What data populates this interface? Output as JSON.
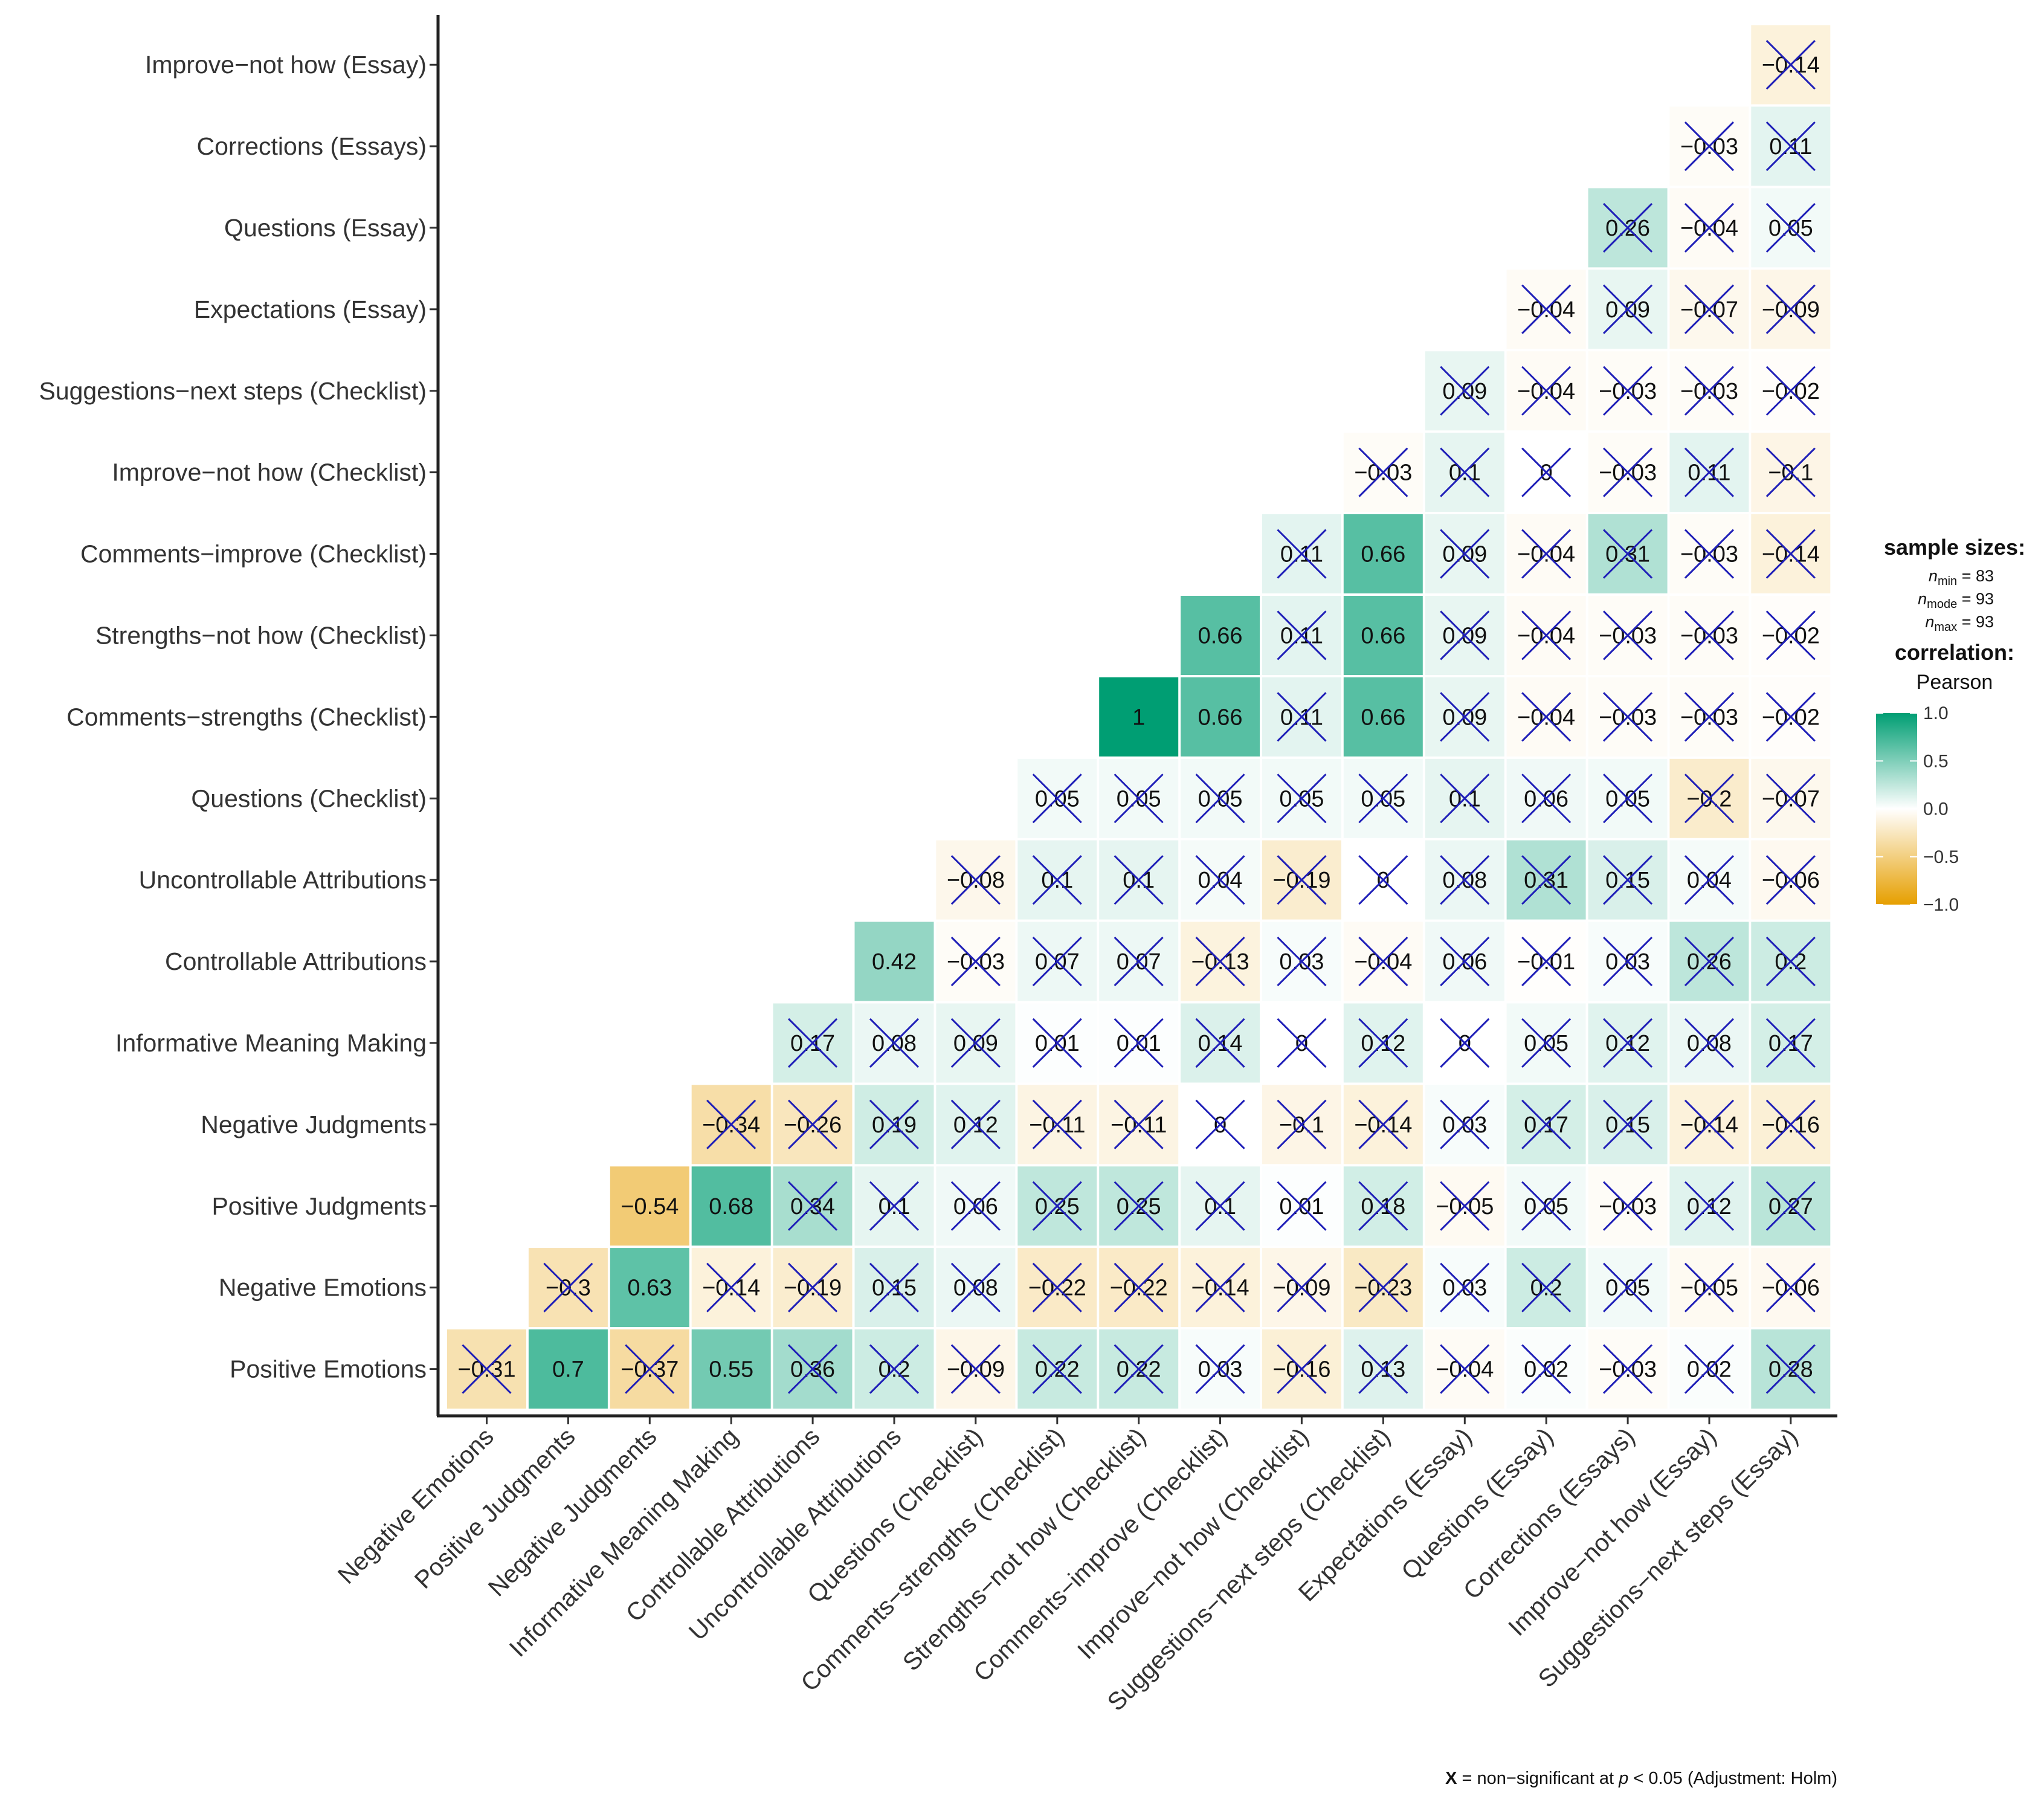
{
  "chart_data": {
    "type": "heatmap",
    "title": "",
    "variables": [
      "Positive Emotions",
      "Negative Emotions",
      "Positive Judgments",
      "Negative Judgments",
      "Informative Meaning Making",
      "Controllable Attributions",
      "Uncontrollable Attributions",
      "Questions (Checklist)",
      "Comments−strengths (Checklist)",
      "Strengths−not how (Checklist)",
      "Comments−improve (Checklist)",
      "Improve−not how (Checklist)",
      "Suggestions−next steps (Checklist)",
      "Expectations (Essay)",
      "Questions (Essay)",
      "Corrections (Essays)",
      "Improve−not how (Essay)",
      "Suggestions−next steps (Essay)"
    ],
    "cells": [
      {
        "r": 0,
        "c": 0,
        "v": -0.31,
        "t": "−0.31",
        "ns": true
      },
      {
        "r": 0,
        "c": 1,
        "v": 0.7,
        "t": "0.7",
        "ns": false
      },
      {
        "r": 0,
        "c": 2,
        "v": -0.37,
        "t": "−0.37",
        "ns": true
      },
      {
        "r": 0,
        "c": 3,
        "v": 0.55,
        "t": "0.55",
        "ns": false
      },
      {
        "r": 0,
        "c": 4,
        "v": 0.36,
        "t": "0.36",
        "ns": true
      },
      {
        "r": 0,
        "c": 5,
        "v": 0.2,
        "t": "0.2",
        "ns": true
      },
      {
        "r": 0,
        "c": 6,
        "v": -0.09,
        "t": "−0.09",
        "ns": true
      },
      {
        "r": 0,
        "c": 7,
        "v": 0.22,
        "t": "0.22",
        "ns": true
      },
      {
        "r": 0,
        "c": 8,
        "v": 0.22,
        "t": "0.22",
        "ns": true
      },
      {
        "r": 0,
        "c": 9,
        "v": 0.03,
        "t": "0.03",
        "ns": true
      },
      {
        "r": 0,
        "c": 10,
        "v": -0.16,
        "t": "−0.16",
        "ns": true
      },
      {
        "r": 0,
        "c": 11,
        "v": 0.13,
        "t": "0.13",
        "ns": true
      },
      {
        "r": 0,
        "c": 12,
        "v": -0.04,
        "t": "−0.04",
        "ns": true
      },
      {
        "r": 0,
        "c": 13,
        "v": 0.02,
        "t": "0.02",
        "ns": true
      },
      {
        "r": 0,
        "c": 14,
        "v": -0.03,
        "t": "−0.03",
        "ns": true
      },
      {
        "r": 0,
        "c": 15,
        "v": 0.02,
        "t": "0.02",
        "ns": true
      },
      {
        "r": 0,
        "c": 16,
        "v": 0.28,
        "t": "0.28",
        "ns": true
      },
      {
        "r": 1,
        "c": 1,
        "v": -0.3,
        "t": "−0.3",
        "ns": true
      },
      {
        "r": 1,
        "c": 2,
        "v": 0.63,
        "t": "0.63",
        "ns": false
      },
      {
        "r": 1,
        "c": 3,
        "v": -0.14,
        "t": "−0.14",
        "ns": true
      },
      {
        "r": 1,
        "c": 4,
        "v": -0.19,
        "t": "−0.19",
        "ns": true
      },
      {
        "r": 1,
        "c": 5,
        "v": 0.15,
        "t": "0.15",
        "ns": true
      },
      {
        "r": 1,
        "c": 6,
        "v": 0.08,
        "t": "0.08",
        "ns": true
      },
      {
        "r": 1,
        "c": 7,
        "v": -0.22,
        "t": "−0.22",
        "ns": true
      },
      {
        "r": 1,
        "c": 8,
        "v": -0.22,
        "t": "−0.22",
        "ns": true
      },
      {
        "r": 1,
        "c": 9,
        "v": -0.14,
        "t": "−0.14",
        "ns": true
      },
      {
        "r": 1,
        "c": 10,
        "v": -0.09,
        "t": "−0.09",
        "ns": true
      },
      {
        "r": 1,
        "c": 11,
        "v": -0.23,
        "t": "−0.23",
        "ns": true
      },
      {
        "r": 1,
        "c": 12,
        "v": 0.03,
        "t": "0.03",
        "ns": true
      },
      {
        "r": 1,
        "c": 13,
        "v": 0.2,
        "t": "0.2",
        "ns": true
      },
      {
        "r": 1,
        "c": 14,
        "v": 0.05,
        "t": "0.05",
        "ns": true
      },
      {
        "r": 1,
        "c": 15,
        "v": -0.05,
        "t": "−0.05",
        "ns": true
      },
      {
        "r": 1,
        "c": 16,
        "v": -0.06,
        "t": "−0.06",
        "ns": true
      },
      {
        "r": 2,
        "c": 2,
        "v": -0.54,
        "t": "−0.54",
        "ns": false
      },
      {
        "r": 2,
        "c": 3,
        "v": 0.68,
        "t": "0.68",
        "ns": false
      },
      {
        "r": 2,
        "c": 4,
        "v": 0.34,
        "t": "0.34",
        "ns": true
      },
      {
        "r": 2,
        "c": 5,
        "v": 0.1,
        "t": "0.1",
        "ns": true
      },
      {
        "r": 2,
        "c": 6,
        "v": 0.06,
        "t": "0.06",
        "ns": true
      },
      {
        "r": 2,
        "c": 7,
        "v": 0.25,
        "t": "0.25",
        "ns": true
      },
      {
        "r": 2,
        "c": 8,
        "v": 0.25,
        "t": "0.25",
        "ns": true
      },
      {
        "r": 2,
        "c": 9,
        "v": 0.1,
        "t": "0.1",
        "ns": true
      },
      {
        "r": 2,
        "c": 10,
        "v": 0.01,
        "t": "0.01",
        "ns": true
      },
      {
        "r": 2,
        "c": 11,
        "v": 0.18,
        "t": "0.18",
        "ns": true
      },
      {
        "r": 2,
        "c": 12,
        "v": -0.05,
        "t": "−0.05",
        "ns": true
      },
      {
        "r": 2,
        "c": 13,
        "v": 0.05,
        "t": "0.05",
        "ns": true
      },
      {
        "r": 2,
        "c": 14,
        "v": -0.03,
        "t": "−0.03",
        "ns": true
      },
      {
        "r": 2,
        "c": 15,
        "v": 0.12,
        "t": "0.12",
        "ns": true
      },
      {
        "r": 2,
        "c": 16,
        "v": 0.27,
        "t": "0.27",
        "ns": true
      },
      {
        "r": 3,
        "c": 3,
        "v": -0.34,
        "t": "−0.34",
        "ns": true
      },
      {
        "r": 3,
        "c": 4,
        "v": -0.26,
        "t": "−0.26",
        "ns": true
      },
      {
        "r": 3,
        "c": 5,
        "v": 0.19,
        "t": "0.19",
        "ns": true
      },
      {
        "r": 3,
        "c": 6,
        "v": 0.12,
        "t": "0.12",
        "ns": true
      },
      {
        "r": 3,
        "c": 7,
        "v": -0.11,
        "t": "−0.11",
        "ns": true
      },
      {
        "r": 3,
        "c": 8,
        "v": -0.11,
        "t": "−0.11",
        "ns": true
      },
      {
        "r": 3,
        "c": 9,
        "v": 0,
        "t": "0",
        "ns": true
      },
      {
        "r": 3,
        "c": 10,
        "v": -0.1,
        "t": "−0.1",
        "ns": true
      },
      {
        "r": 3,
        "c": 11,
        "v": -0.14,
        "t": "−0.14",
        "ns": true
      },
      {
        "r": 3,
        "c": 12,
        "v": 0.03,
        "t": "0.03",
        "ns": true
      },
      {
        "r": 3,
        "c": 13,
        "v": 0.17,
        "t": "0.17",
        "ns": true
      },
      {
        "r": 3,
        "c": 14,
        "v": 0.15,
        "t": "0.15",
        "ns": true
      },
      {
        "r": 3,
        "c": 15,
        "v": -0.14,
        "t": "−0.14",
        "ns": true
      },
      {
        "r": 3,
        "c": 16,
        "v": -0.16,
        "t": "−0.16",
        "ns": true
      },
      {
        "r": 4,
        "c": 4,
        "v": 0.17,
        "t": "0.17",
        "ns": true
      },
      {
        "r": 4,
        "c": 5,
        "v": 0.08,
        "t": "0.08",
        "ns": true
      },
      {
        "r": 4,
        "c": 6,
        "v": 0.09,
        "t": "0.09",
        "ns": true
      },
      {
        "r": 4,
        "c": 7,
        "v": 0.01,
        "t": "0.01",
        "ns": true
      },
      {
        "r": 4,
        "c": 8,
        "v": 0.01,
        "t": "0.01",
        "ns": true
      },
      {
        "r": 4,
        "c": 9,
        "v": 0.14,
        "t": "0.14",
        "ns": true
      },
      {
        "r": 4,
        "c": 10,
        "v": 0,
        "t": "0",
        "ns": true
      },
      {
        "r": 4,
        "c": 11,
        "v": 0.12,
        "t": "0.12",
        "ns": true
      },
      {
        "r": 4,
        "c": 12,
        "v": 0,
        "t": "0",
        "ns": true
      },
      {
        "r": 4,
        "c": 13,
        "v": 0.05,
        "t": "0.05",
        "ns": true
      },
      {
        "r": 4,
        "c": 14,
        "v": 0.12,
        "t": "0.12",
        "ns": true
      },
      {
        "r": 4,
        "c": 15,
        "v": 0.08,
        "t": "0.08",
        "ns": true
      },
      {
        "r": 4,
        "c": 16,
        "v": 0.17,
        "t": "0.17",
        "ns": true
      },
      {
        "r": 5,
        "c": 5,
        "v": 0.42,
        "t": "0.42",
        "ns": false
      },
      {
        "r": 5,
        "c": 6,
        "v": -0.03,
        "t": "−0.03",
        "ns": true
      },
      {
        "r": 5,
        "c": 7,
        "v": 0.07,
        "t": "0.07",
        "ns": true
      },
      {
        "r": 5,
        "c": 8,
        "v": 0.07,
        "t": "0.07",
        "ns": true
      },
      {
        "r": 5,
        "c": 9,
        "v": -0.13,
        "t": "−0.13",
        "ns": true
      },
      {
        "r": 5,
        "c": 10,
        "v": 0.03,
        "t": "0.03",
        "ns": true
      },
      {
        "r": 5,
        "c": 11,
        "v": -0.04,
        "t": "−0.04",
        "ns": true
      },
      {
        "r": 5,
        "c": 12,
        "v": 0.06,
        "t": "0.06",
        "ns": true
      },
      {
        "r": 5,
        "c": 13,
        "v": -0.01,
        "t": "−0.01",
        "ns": true
      },
      {
        "r": 5,
        "c": 14,
        "v": 0.03,
        "t": "0.03",
        "ns": true
      },
      {
        "r": 5,
        "c": 15,
        "v": 0.26,
        "t": "0.26",
        "ns": true
      },
      {
        "r": 5,
        "c": 16,
        "v": 0.2,
        "t": "0.2",
        "ns": true
      },
      {
        "r": 6,
        "c": 6,
        "v": -0.08,
        "t": "−0.08",
        "ns": true
      },
      {
        "r": 6,
        "c": 7,
        "v": 0.1,
        "t": "0.1",
        "ns": true
      },
      {
        "r": 6,
        "c": 8,
        "v": 0.1,
        "t": "0.1",
        "ns": true
      },
      {
        "r": 6,
        "c": 9,
        "v": 0.04,
        "t": "0.04",
        "ns": true
      },
      {
        "r": 6,
        "c": 10,
        "v": -0.19,
        "t": "−0.19",
        "ns": true
      },
      {
        "r": 6,
        "c": 11,
        "v": 0,
        "t": "0",
        "ns": true
      },
      {
        "r": 6,
        "c": 12,
        "v": 0.08,
        "t": "0.08",
        "ns": true
      },
      {
        "r": 6,
        "c": 13,
        "v": 0.31,
        "t": "0.31",
        "ns": true
      },
      {
        "r": 6,
        "c": 14,
        "v": 0.15,
        "t": "0.15",
        "ns": true
      },
      {
        "r": 6,
        "c": 15,
        "v": 0.04,
        "t": "0.04",
        "ns": true
      },
      {
        "r": 6,
        "c": 16,
        "v": -0.06,
        "t": "−0.06",
        "ns": true
      },
      {
        "r": 7,
        "c": 7,
        "v": 0.05,
        "t": "0.05",
        "ns": true
      },
      {
        "r": 7,
        "c": 8,
        "v": 0.05,
        "t": "0.05",
        "ns": true
      },
      {
        "r": 7,
        "c": 9,
        "v": 0.05,
        "t": "0.05",
        "ns": true
      },
      {
        "r": 7,
        "c": 10,
        "v": 0.05,
        "t": "0.05",
        "ns": true
      },
      {
        "r": 7,
        "c": 11,
        "v": 0.05,
        "t": "0.05",
        "ns": true
      },
      {
        "r": 7,
        "c": 12,
        "v": 0.1,
        "t": "0.1",
        "ns": true
      },
      {
        "r": 7,
        "c": 13,
        "v": 0.06,
        "t": "0.06",
        "ns": true
      },
      {
        "r": 7,
        "c": 14,
        "v": 0.05,
        "t": "0.05",
        "ns": true
      },
      {
        "r": 7,
        "c": 15,
        "v": -0.2,
        "t": "−0.2",
        "ns": true
      },
      {
        "r": 7,
        "c": 16,
        "v": -0.07,
        "t": "−0.07",
        "ns": true
      },
      {
        "r": 8,
        "c": 8,
        "v": 1,
        "t": "1",
        "ns": false
      },
      {
        "r": 8,
        "c": 9,
        "v": 0.66,
        "t": "0.66",
        "ns": false
      },
      {
        "r": 8,
        "c": 10,
        "v": 0.11,
        "t": "0.11",
        "ns": true
      },
      {
        "r": 8,
        "c": 11,
        "v": 0.66,
        "t": "0.66",
        "ns": false
      },
      {
        "r": 8,
        "c": 12,
        "v": 0.09,
        "t": "0.09",
        "ns": true
      },
      {
        "r": 8,
        "c": 13,
        "v": -0.04,
        "t": "−0.04",
        "ns": true
      },
      {
        "r": 8,
        "c": 14,
        "v": -0.03,
        "t": "−0.03",
        "ns": true
      },
      {
        "r": 8,
        "c": 15,
        "v": -0.03,
        "t": "−0.03",
        "ns": true
      },
      {
        "r": 8,
        "c": 16,
        "v": -0.02,
        "t": "−0.02",
        "ns": true
      },
      {
        "r": 9,
        "c": 9,
        "v": 0.66,
        "t": "0.66",
        "ns": false
      },
      {
        "r": 9,
        "c": 10,
        "v": 0.11,
        "t": "0.11",
        "ns": true
      },
      {
        "r": 9,
        "c": 11,
        "v": 0.66,
        "t": "0.66",
        "ns": false
      },
      {
        "r": 9,
        "c": 12,
        "v": 0.09,
        "t": "0.09",
        "ns": true
      },
      {
        "r": 9,
        "c": 13,
        "v": -0.04,
        "t": "−0.04",
        "ns": true
      },
      {
        "r": 9,
        "c": 14,
        "v": -0.03,
        "t": "−0.03",
        "ns": true
      },
      {
        "r": 9,
        "c": 15,
        "v": -0.03,
        "t": "−0.03",
        "ns": true
      },
      {
        "r": 9,
        "c": 16,
        "v": -0.02,
        "t": "−0.02",
        "ns": true
      },
      {
        "r": 10,
        "c": 10,
        "v": 0.11,
        "t": "0.11",
        "ns": true
      },
      {
        "r": 10,
        "c": 11,
        "v": 0.66,
        "t": "0.66",
        "ns": false
      },
      {
        "r": 10,
        "c": 12,
        "v": 0.09,
        "t": "0.09",
        "ns": true
      },
      {
        "r": 10,
        "c": 13,
        "v": -0.04,
        "t": "−0.04",
        "ns": true
      },
      {
        "r": 10,
        "c": 14,
        "v": 0.31,
        "t": "0.31",
        "ns": true
      },
      {
        "r": 10,
        "c": 15,
        "v": -0.03,
        "t": "−0.03",
        "ns": true
      },
      {
        "r": 10,
        "c": 16,
        "v": -0.14,
        "t": "−0.14",
        "ns": true
      },
      {
        "r": 11,
        "c": 11,
        "v": -0.03,
        "t": "−0.03",
        "ns": true
      },
      {
        "r": 11,
        "c": 12,
        "v": 0.1,
        "t": "0.1",
        "ns": true
      },
      {
        "r": 11,
        "c": 13,
        "v": 0,
        "t": "0",
        "ns": true
      },
      {
        "r": 11,
        "c": 14,
        "v": -0.03,
        "t": "−0.03",
        "ns": true
      },
      {
        "r": 11,
        "c": 15,
        "v": 0.11,
        "t": "0.11",
        "ns": true
      },
      {
        "r": 11,
        "c": 16,
        "v": -0.1,
        "t": "−0.1",
        "ns": true
      },
      {
        "r": 12,
        "c": 12,
        "v": 0.09,
        "t": "0.09",
        "ns": true
      },
      {
        "r": 12,
        "c": 13,
        "v": -0.04,
        "t": "−0.04",
        "ns": true
      },
      {
        "r": 12,
        "c": 14,
        "v": -0.03,
        "t": "−0.03",
        "ns": true
      },
      {
        "r": 12,
        "c": 15,
        "v": -0.03,
        "t": "−0.03",
        "ns": true
      },
      {
        "r": 12,
        "c": 16,
        "v": -0.02,
        "t": "−0.02",
        "ns": true
      },
      {
        "r": 13,
        "c": 13,
        "v": -0.04,
        "t": "−0.04",
        "ns": true
      },
      {
        "r": 13,
        "c": 14,
        "v": 0.09,
        "t": "0.09",
        "ns": true
      },
      {
        "r": 13,
        "c": 15,
        "v": -0.07,
        "t": "−0.07",
        "ns": true
      },
      {
        "r": 13,
        "c": 16,
        "v": -0.09,
        "t": "−0.09",
        "ns": true
      },
      {
        "r": 14,
        "c": 14,
        "v": 0.26,
        "t": "0.26",
        "ns": true
      },
      {
        "r": 14,
        "c": 15,
        "v": -0.04,
        "t": "−0.04",
        "ns": true
      },
      {
        "r": 14,
        "c": 16,
        "v": 0.05,
        "t": "0.05",
        "ns": true
      },
      {
        "r": 15,
        "c": 15,
        "v": -0.03,
        "t": "−0.03",
        "ns": true
      },
      {
        "r": 15,
        "c": 16,
        "v": 0.11,
        "t": "0.11",
        "ns": true
      },
      {
        "r": 16,
        "c": 16,
        "v": -0.14,
        "t": "−0.14",
        "ns": true
      }
    ],
    "color_scale": {
      "low": "#E69F00",
      "mid": "#FFFFFF",
      "high": "#009E73",
      "range": [
        -1,
        1
      ],
      "ticks": [
        1.0,
        0.5,
        0.0,
        -0.5,
        -1.0
      ],
      "tick_labels": [
        "1.0",
        "0.5",
        "0.0",
        "−0.5",
        "−1.0"
      ]
    },
    "cross_color": "#1F1FB8",
    "legend": {
      "sample_sizes_title": "sample sizes:",
      "n_min": "n",
      "n_min_sub": "min",
      "n_min_val": " = 83",
      "n_mode": "n",
      "n_mode_sub": "mode",
      "n_mode_val": " = 93",
      "n_max": "n",
      "n_max_sub": "max",
      "n_max_val": " = 93",
      "correlation_title": "correlation:",
      "correlation_method": "Pearson",
      "placement": "right"
    },
    "caption": {
      "x_symbol": "X",
      "part1": " = non−significant at ",
      "p_symbol": "p",
      "part2": " < 0.05 (Adjustment: Holm)",
      "placement": "bottom-right"
    }
  }
}
